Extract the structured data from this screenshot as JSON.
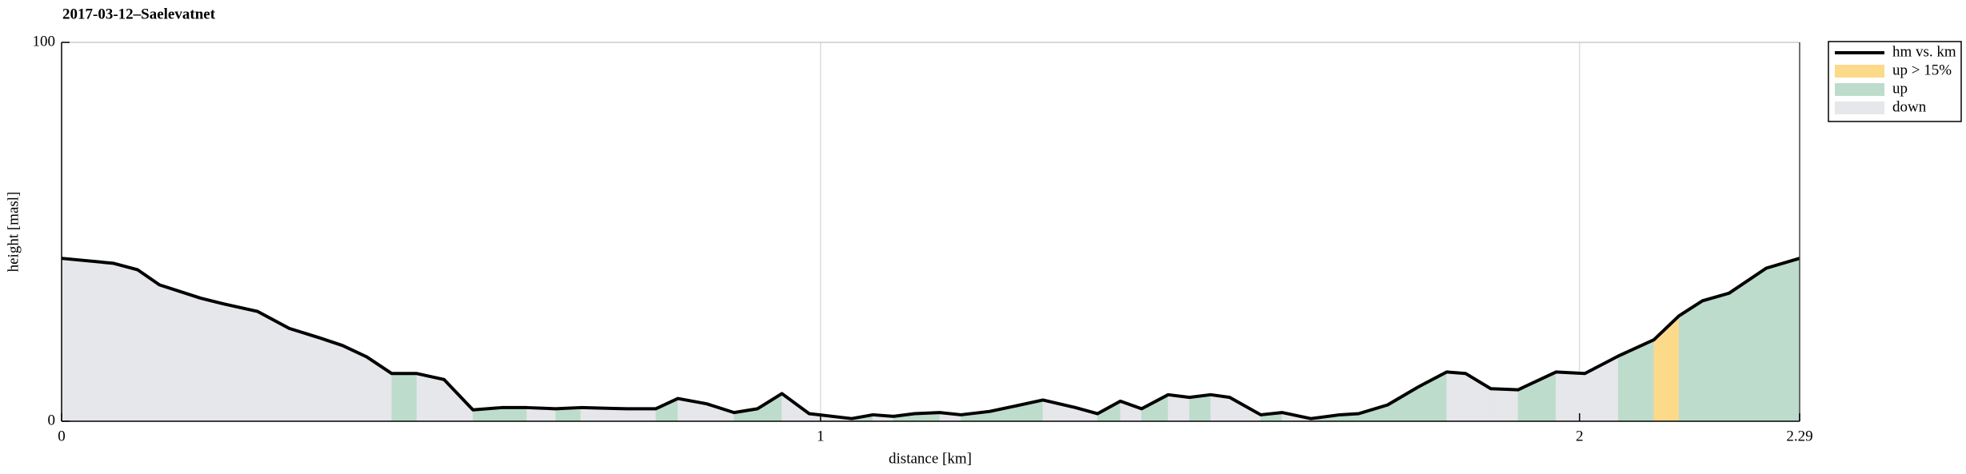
{
  "chart_data": {
    "type": "line",
    "title": "2017-03-12–Saelevatnet",
    "xlabel": "distance [km]",
    "ylabel": "height [masl]",
    "x": [
      0,
      0.068,
      0.1,
      0.129,
      0.183,
      0.213,
      0.258,
      0.3,
      0.34,
      0.37,
      0.402,
      0.435,
      0.468,
      0.504,
      0.542,
      0.58,
      0.613,
      0.651,
      0.684,
      0.745,
      0.783,
      0.812,
      0.85,
      0.886,
      0.917,
      0.949,
      0.985,
      1.041,
      1.069,
      1.096,
      1.124,
      1.157,
      1.185,
      1.223,
      1.256,
      1.293,
      1.336,
      1.365,
      1.395,
      1.423,
      1.458,
      1.486,
      1.514,
      1.539,
      1.58,
      1.608,
      1.646,
      1.684,
      1.709,
      1.747,
      1.787,
      1.825,
      1.85,
      1.883,
      1.919,
      1.969,
      2.007,
      2.051,
      2.098,
      2.131,
      2.162,
      2.197,
      2.246,
      2.29
    ],
    "series": [
      {
        "name": "hm vs. km",
        "color": "#000000",
        "values": [
          43,
          41.7,
          40,
          36,
          32.5,
          31,
          29,
          24.5,
          22,
          20,
          17,
          12.6,
          12.6,
          11,
          3,
          3.6,
          3.6,
          3.3,
          3.6,
          3.3,
          3.3,
          6,
          4.6,
          2.3,
          3.3,
          7.3,
          2,
          0.7,
          1.7,
          1.3,
          2,
          2.3,
          1.7,
          2.6,
          4,
          5.6,
          3.6,
          2,
          5.3,
          3.3,
          7,
          6.3,
          7,
          6.3,
          1.7,
          2.3,
          0.7,
          1.7,
          2,
          4.3,
          9,
          13,
          12.6,
          8.6,
          8.3,
          13,
          12.6,
          17.2,
          21.5,
          27.8,
          31.8,
          33.8,
          40.4,
          43
        ]
      }
    ],
    "areas": [
      {
        "name": "up > 15%",
        "color": "#fdd98a"
      },
      {
        "name": "up",
        "color": "#bedccc"
      },
      {
        "name": "down",
        "color": "#e6e7ea"
      }
    ],
    "segment_area": [
      2,
      2,
      2,
      2,
      2,
      2,
      2,
      2,
      2,
      2,
      2,
      1,
      2,
      2,
      1,
      1,
      2,
      1,
      2,
      2,
      1,
      2,
      2,
      1,
      1,
      2,
      2,
      1,
      2,
      1,
      1,
      2,
      1,
      1,
      1,
      2,
      2,
      1,
      2,
      1,
      2,
      1,
      2,
      2,
      1,
      2,
      1,
      1,
      1,
      1,
      1,
      2,
      2,
      2,
      1,
      2,
      2,
      1,
      0,
      1,
      1,
      1,
      1
    ],
    "xlim": [
      0,
      2.29
    ],
    "xticks": [
      0,
      1,
      2,
      2.29
    ],
    "ylim": [
      0,
      100
    ],
    "yticks": [
      0,
      100
    ],
    "grid": "x",
    "legend": "outside-top-right"
  }
}
